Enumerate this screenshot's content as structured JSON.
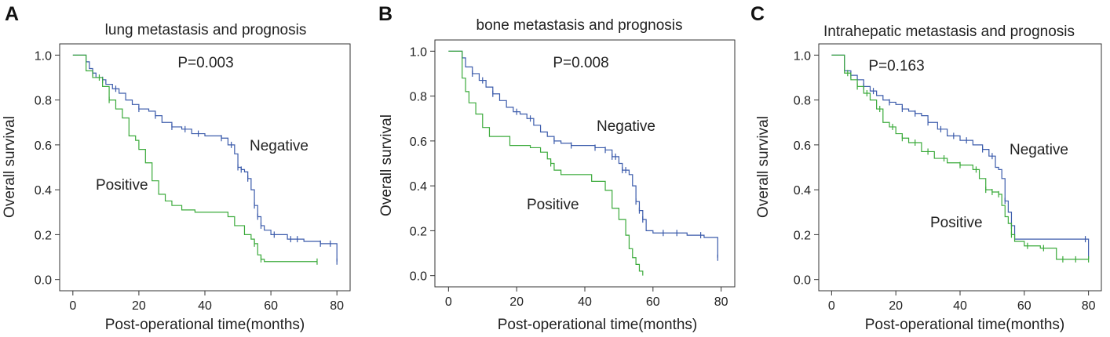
{
  "colors": {
    "negative": "#3b5bab",
    "positive": "#3aaa3a",
    "text": "#222222"
  },
  "chart_data": [
    {
      "type": "line",
      "panel": "A",
      "title": "lung metastasis and prognosis",
      "p_value": "P=0.003",
      "xlabel": "Post-operational time(months)",
      "ylabel": "Overall survival",
      "xlim": [
        -4,
        84
      ],
      "ylim": [
        -0.05,
        1.05
      ],
      "xticks": [
        "0",
        "20",
        "40",
        "60",
        "80"
      ],
      "yticks": [
        "0.0",
        "0.2",
        "0.4",
        "0.6",
        "0.8",
        "1.0"
      ],
      "series": [
        {
          "name": "Negative",
          "label": "Negative",
          "x": [
            0,
            4,
            5,
            6,
            7,
            9,
            10,
            12,
            14,
            16,
            18,
            20,
            23,
            25,
            27,
            30,
            33,
            36,
            40,
            45,
            47,
            49,
            50,
            51,
            52,
            53,
            54,
            55,
            56,
            57,
            58,
            60,
            62,
            65,
            70,
            75,
            78,
            80
          ],
          "y": [
            1.0,
            0.97,
            0.94,
            0.92,
            0.9,
            0.89,
            0.87,
            0.85,
            0.83,
            0.8,
            0.78,
            0.76,
            0.75,
            0.73,
            0.7,
            0.68,
            0.67,
            0.65,
            0.64,
            0.63,
            0.6,
            0.56,
            0.5,
            0.49,
            0.48,
            0.45,
            0.4,
            0.33,
            0.28,
            0.24,
            0.22,
            0.2,
            0.2,
            0.18,
            0.17,
            0.16,
            0.16,
            0.08
          ],
          "censor_x": [
            6,
            9,
            13,
            20,
            25,
            30,
            34,
            38,
            45,
            48,
            50,
            51,
            53,
            55,
            56,
            57,
            61,
            66,
            68,
            75,
            78,
            80
          ]
        },
        {
          "name": "Positive",
          "label": "Positive",
          "x": [
            0,
            4,
            6,
            9,
            11,
            13,
            15,
            17,
            19,
            20,
            22,
            24,
            26,
            28,
            30,
            33,
            37,
            40,
            47,
            49,
            52,
            54,
            55,
            56,
            57,
            58,
            74
          ],
          "y": [
            1.0,
            0.93,
            0.9,
            0.86,
            0.8,
            0.76,
            0.72,
            0.64,
            0.62,
            0.58,
            0.52,
            0.44,
            0.38,
            0.35,
            0.33,
            0.31,
            0.3,
            0.3,
            0.28,
            0.24,
            0.2,
            0.18,
            0.16,
            0.11,
            0.09,
            0.08,
            0.08
          ],
          "censor_x": [
            8,
            11,
            55,
            57,
            74
          ]
        }
      ]
    },
    {
      "type": "line",
      "panel": "B",
      "title": "bone metastasis and prognosis",
      "p_value": "P=0.008",
      "xlabel": "Post-operational time(months)",
      "ylabel": "Overall survival",
      "xlim": [
        -4,
        84
      ],
      "ylim": [
        -0.05,
        1.05
      ],
      "xticks": [
        "0",
        "20",
        "40",
        "60",
        "80"
      ],
      "yticks": [
        "0.0",
        "0.2",
        "0.4",
        "0.6",
        "0.8",
        "1.0"
      ],
      "series": [
        {
          "name": "Negative",
          "label": "Negative",
          "x": [
            0,
            4,
            5,
            7,
            9,
            11,
            13,
            15,
            17,
            19,
            21,
            23,
            25,
            27,
            29,
            31,
            33,
            36,
            39,
            43,
            46,
            48,
            50,
            51,
            53,
            54,
            55,
            56,
            57,
            58,
            60,
            65,
            70,
            75,
            78,
            79
          ],
          "y": [
            1.0,
            0.97,
            0.93,
            0.9,
            0.87,
            0.84,
            0.81,
            0.78,
            0.75,
            0.73,
            0.72,
            0.7,
            0.67,
            0.64,
            0.62,
            0.6,
            0.59,
            0.58,
            0.58,
            0.57,
            0.56,
            0.53,
            0.5,
            0.47,
            0.45,
            0.4,
            0.33,
            0.29,
            0.25,
            0.2,
            0.19,
            0.19,
            0.18,
            0.17,
            0.17,
            0.08
          ],
          "censor_x": [
            7,
            10,
            13,
            20,
            24,
            31,
            36,
            43,
            46,
            48,
            49,
            51,
            52,
            55,
            56,
            57,
            63,
            67,
            74,
            79
          ]
        },
        {
          "name": "Positive",
          "label": "Positive",
          "x": [
            0,
            4,
            5,
            6,
            8,
            10,
            12,
            18,
            20,
            24,
            27,
            29,
            30,
            31,
            33,
            36,
            42,
            46,
            48,
            50,
            52,
            53,
            54,
            55,
            56,
            57
          ],
          "y": [
            1.0,
            0.88,
            0.82,
            0.77,
            0.72,
            0.66,
            0.62,
            0.58,
            0.58,
            0.57,
            0.55,
            0.52,
            0.5,
            0.47,
            0.45,
            0.45,
            0.42,
            0.38,
            0.3,
            0.25,
            0.18,
            0.12,
            0.08,
            0.05,
            0.02,
            0.0
          ],
          "censor_x": [
            30
          ]
        }
      ]
    },
    {
      "type": "line",
      "panel": "C",
      "title": "Intrahepatic metastasis and prognosis",
      "p_value": "P=0.163",
      "xlabel": "Post-operational time(months)",
      "ylabel": "Overall survival",
      "xlim": [
        -4,
        84
      ],
      "ylim": [
        -0.05,
        1.05
      ],
      "xticks": [
        "0",
        "20",
        "40",
        "60",
        "80"
      ],
      "yticks": [
        "0.0",
        "0.2",
        "0.4",
        "0.6",
        "0.8",
        "1.0"
      ],
      "series": [
        {
          "name": "Negative",
          "label": "Negative",
          "x": [
            0,
            4,
            6,
            8,
            10,
            12,
            14,
            16,
            18,
            20,
            22,
            24,
            26,
            28,
            30,
            33,
            36,
            40,
            44,
            47,
            49,
            51,
            52,
            53,
            54,
            55,
            56,
            57,
            60,
            70,
            79,
            80
          ],
          "y": [
            1.0,
            0.93,
            0.91,
            0.89,
            0.86,
            0.84,
            0.82,
            0.8,
            0.79,
            0.78,
            0.76,
            0.75,
            0.74,
            0.73,
            0.7,
            0.67,
            0.64,
            0.62,
            0.6,
            0.58,
            0.55,
            0.5,
            0.49,
            0.45,
            0.35,
            0.3,
            0.24,
            0.18,
            0.18,
            0.18,
            0.18,
            0.09
          ],
          "censor_x": [
            6,
            10,
            13,
            18,
            22,
            26,
            30,
            34,
            38,
            42,
            47,
            50,
            54,
            56,
            79
          ]
        },
        {
          "name": "Positive",
          "label": "Positive",
          "x": [
            0,
            4,
            6,
            8,
            10,
            12,
            14,
            16,
            18,
            20,
            22,
            24,
            28,
            32,
            36,
            40,
            44,
            46,
            48,
            50,
            52,
            53,
            54,
            55,
            56,
            57,
            60,
            65,
            70,
            80
          ],
          "y": [
            1.0,
            0.92,
            0.89,
            0.86,
            0.83,
            0.8,
            0.76,
            0.7,
            0.68,
            0.65,
            0.63,
            0.61,
            0.57,
            0.54,
            0.52,
            0.51,
            0.49,
            0.45,
            0.4,
            0.39,
            0.38,
            0.33,
            0.28,
            0.25,
            0.2,
            0.17,
            0.15,
            0.14,
            0.09,
            0.09
          ],
          "censor_x": [
            5,
            8,
            11,
            15,
            19,
            22,
            26,
            30,
            35,
            40,
            45,
            48,
            50,
            52,
            56,
            61,
            66,
            72,
            76,
            80
          ]
        }
      ]
    }
  ]
}
